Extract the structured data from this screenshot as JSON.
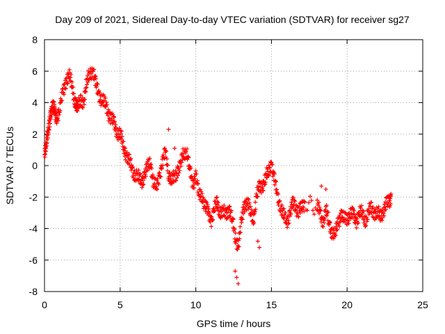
{
  "chart_data": {
    "type": "scatter",
    "title": "Day 209 of 2021, Sidereal Day-to-day VTEC variation (SDTVAR) for receiver sg27",
    "xlabel": "GPS time / hours",
    "ylabel": "SDTVAR / TECUs",
    "xlim": [
      0,
      25
    ],
    "ylim": [
      -8,
      8
    ],
    "xticks": [
      0,
      5,
      10,
      15,
      20,
      25
    ],
    "yticks": [
      -8,
      -6,
      -4,
      -2,
      0,
      2,
      4,
      6,
      8
    ],
    "xtick_labels": [
      "0",
      "5",
      "10",
      "15",
      "20",
      "25"
    ],
    "ytick_labels": [
      "-8",
      "-6",
      "-4",
      "-2",
      "0",
      "2",
      "4",
      "6",
      "8"
    ],
    "grid": true,
    "marker": "+",
    "series": [
      {
        "name": "sg27",
        "color": "#ff0000",
        "x": [
          0.0,
          0.1,
          0.2,
          0.3,
          0.4,
          0.5,
          0.6,
          0.7,
          0.8,
          1.0,
          1.2,
          1.4,
          1.6,
          1.8,
          2.0,
          2.1,
          2.2,
          2.4,
          2.6,
          2.8,
          3.0,
          3.2,
          3.4,
          3.6,
          3.8,
          4.0,
          4.2,
          4.4,
          4.6,
          4.8,
          5.0,
          5.2,
          5.4,
          5.6,
          5.8,
          6.0,
          6.2,
          6.4,
          6.6,
          6.8,
          7.0,
          7.2,
          7.4,
          7.6,
          7.8,
          8.0,
          8.2,
          8.4,
          8.6,
          8.8,
          9.0,
          9.2,
          9.4,
          9.6,
          9.8,
          10.0,
          10.2,
          10.4,
          10.6,
          10.8,
          11.0,
          11.2,
          11.4,
          11.6,
          11.8,
          12.0,
          12.2,
          12.4,
          12.6,
          12.8,
          13.0,
          13.2,
          13.4,
          13.6,
          13.8,
          14.0,
          14.2,
          14.4,
          14.6,
          14.8,
          15.0,
          15.2,
          15.4,
          15.6,
          15.8,
          16.0,
          16.2,
          16.4,
          16.6,
          16.8,
          17.0,
          17.2,
          18.0,
          18.2,
          18.4,
          18.6,
          18.8,
          19.0,
          19.2,
          19.4,
          19.6,
          19.8,
          20.0,
          20.2,
          20.4,
          20.6,
          20.8,
          21.0,
          21.2,
          21.4,
          21.6,
          21.8,
          22.0,
          22.2,
          22.4,
          22.6,
          22.8,
          22.9
        ],
        "y": [
          0.5,
          1.2,
          2.0,
          2.8,
          3.3,
          3.5,
          3.6,
          3.3,
          3.2,
          3.5,
          4.5,
          5.4,
          5.7,
          5.2,
          4.2,
          3.9,
          3.6,
          4.1,
          4.2,
          5.2,
          5.9,
          6.1,
          5.0,
          4.6,
          4.2,
          3.9,
          3.5,
          3.0,
          2.6,
          2.2,
          2.0,
          1.2,
          0.8,
          0.2,
          -0.3,
          -0.5,
          -0.8,
          -1.0,
          -0.6,
          -0.2,
          0.3,
          -1.0,
          -1.5,
          -0.5,
          0.2,
          0.8,
          -0.4,
          -1.0,
          -0.8,
          -0.2,
          0.0,
          0.8,
          1.0,
          -0.4,
          -1.2,
          -0.5,
          -2.0,
          -1.8,
          -2.5,
          -3.0,
          -3.4,
          -2.8,
          -2.5,
          -2.8,
          -3.0,
          -3.2,
          -2.6,
          -3.5,
          -4.5,
          -5.0,
          -3.8,
          -2.5,
          -2.2,
          -3.0,
          -3.4,
          -2.0,
          -1.5,
          -1.2,
          -0.8,
          -0.5,
          0.3,
          -1.0,
          -2.0,
          -2.5,
          -3.2,
          -3.6,
          -3.0,
          -2.5,
          -2.6,
          -2.8,
          -2.8,
          -2.4,
          -2.6,
          -3.0,
          -3.5,
          -2.9,
          -3.6,
          -4.1,
          -4.5,
          -3.6,
          -3.0,
          -3.5,
          -3.3,
          -3.0,
          -3.2,
          -3.5,
          -3.0,
          -3.1,
          -3.4,
          -3.0,
          -2.8,
          -2.9,
          -3.1,
          -3.2,
          -2.8,
          -2.5,
          -2.3,
          -1.8
        ]
      }
    ],
    "outliers": {
      "x": [
        12.6,
        12.7,
        12.8,
        14.1,
        14.2,
        11.4,
        8.2,
        8.6,
        18.3,
        18.6
      ],
      "y": [
        -6.7,
        -7.1,
        -7.5,
        -4.8,
        -5.2,
        -2.0,
        2.3,
        1.1,
        -1.3,
        -1.5
      ]
    }
  }
}
